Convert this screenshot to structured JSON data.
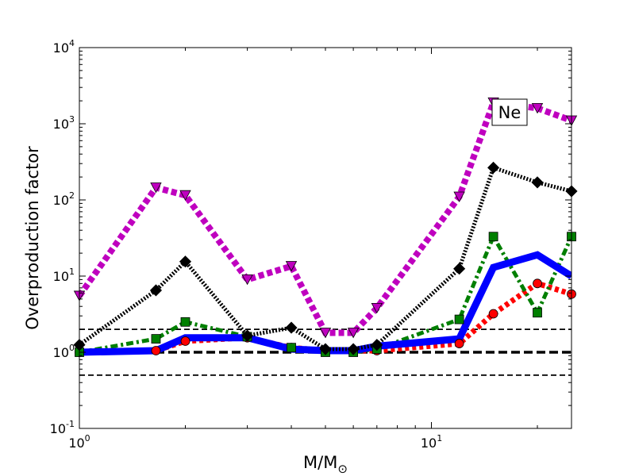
{
  "chart_data": {
    "type": "line",
    "xscale": "log",
    "yscale": "log",
    "xlim": [
      1,
      25
    ],
    "ylim": [
      0.1,
      10000
    ],
    "xlabel": "M/M",
    "xlabel_subscript": "⊙",
    "ylabel": "Overproduction factor",
    "x_ticks": [
      {
        "value": 1,
        "base": "10",
        "exp": "0"
      },
      {
        "value": 10,
        "base": "10",
        "exp": "1"
      }
    ],
    "y_ticks": [
      {
        "value": 0.1,
        "base": "10",
        "exp": "-1"
      },
      {
        "value": 1,
        "base": "10",
        "exp": "0"
      },
      {
        "value": 10,
        "base": "10",
        "exp": "1"
      },
      {
        "value": 100,
        "base": "10",
        "exp": "2"
      },
      {
        "value": 1000,
        "base": "10",
        "exp": "3"
      },
      {
        "value": 10000,
        "base": "10",
        "exp": "4"
      }
    ],
    "annotation": {
      "text": "Ne",
      "x": 17.2,
      "y": 1300
    },
    "reference_lines": [
      {
        "y": 2.0,
        "style": "dashed",
        "color": "#000000",
        "weight": "thin"
      },
      {
        "y": 1.0,
        "style": "dashed",
        "color": "#000000",
        "weight": "thick"
      },
      {
        "y": 0.5,
        "style": "dashed",
        "color": "#000000",
        "weight": "thin"
      }
    ],
    "series": [
      {
        "name": "red",
        "color": "#ff0000",
        "style": "dotted",
        "marker": "circle",
        "markers_visible": true,
        "x": [
          1,
          1.65,
          2,
          3,
          4,
          5,
          6,
          7,
          12,
          15,
          20,
          25
        ],
        "y": [
          1.0,
          1.05,
          1.4,
          1.55,
          1.15,
          1.05,
          1.05,
          1.05,
          1.3,
          3.2,
          8.0,
          5.8
        ]
      },
      {
        "name": "green",
        "color": "#007f00",
        "style": "dashdot",
        "marker": "square",
        "markers_visible": true,
        "x": [
          1,
          1.65,
          2,
          3,
          4,
          5,
          6,
          7,
          12,
          15,
          20,
          25
        ],
        "y": [
          1.0,
          1.5,
          2.5,
          1.6,
          1.15,
          1.0,
          1.0,
          1.1,
          2.7,
          33,
          3.3,
          33
        ]
      },
      {
        "name": "blue",
        "color": "#0000ff",
        "style": "solid",
        "marker": "none",
        "markers_visible": false,
        "x": [
          1,
          1.65,
          2,
          3,
          4,
          5,
          6,
          7,
          12,
          15,
          20,
          25
        ],
        "y": [
          1.0,
          1.05,
          1.55,
          1.55,
          1.1,
          1.05,
          1.05,
          1.2,
          1.5,
          13,
          19,
          10
        ]
      },
      {
        "name": "black",
        "color": "#000000",
        "style": "dotted",
        "marker": "diamond",
        "markers_visible": true,
        "x": [
          1,
          1.65,
          2,
          3,
          4,
          5,
          6,
          7,
          12,
          15,
          20,
          25
        ],
        "y": [
          1.25,
          6.5,
          15.5,
          1.65,
          2.1,
          1.1,
          1.1,
          1.25,
          12.5,
          265,
          170,
          130
        ]
      },
      {
        "name": "magenta",
        "color": "#bf00bf",
        "style": "dotted",
        "marker": "triangle_down",
        "markers_visible": true,
        "x": [
          1,
          1.65,
          2,
          3,
          4,
          5,
          6,
          7,
          12,
          15,
          20,
          25
        ],
        "y": [
          5.5,
          145,
          115,
          9,
          13.5,
          1.8,
          1.8,
          3.8,
          110,
          1900,
          1600,
          1100
        ]
      }
    ]
  }
}
